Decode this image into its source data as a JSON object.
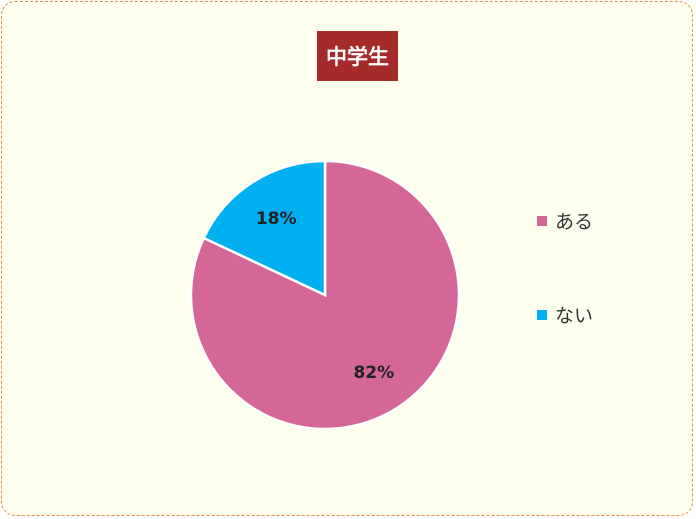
{
  "chart_data": {
    "type": "pie",
    "title": "中学生",
    "categories": [
      "ある",
      "ない"
    ],
    "values": [
      82,
      18
    ],
    "data_labels": [
      "82%",
      "18%"
    ],
    "colors": [
      "#d56798",
      "#00b0f0"
    ],
    "legend_position": "right",
    "start_angle": "top",
    "direction": "clockwise"
  },
  "colors": {
    "title_bg": "#a52a2a",
    "background": "#fffff0",
    "border": "#f08a3c"
  }
}
